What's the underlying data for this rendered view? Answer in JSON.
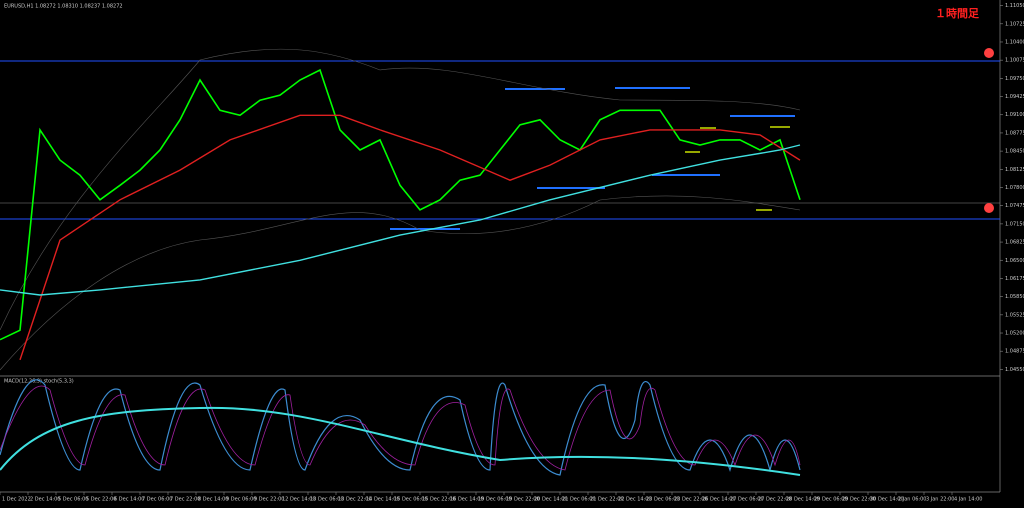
{
  "chart_data": {
    "type": "line",
    "title": "EURUSD,H1 1.08272 1.08310 1.08237 1.08272",
    "annotation": "１時間足",
    "indicator_label": "MACD(12,26,9) stoch(5,3,3)",
    "ylim": [
      1.0445,
      1.1115
    ],
    "yticks": [
      {
        "value": 1.1105,
        "label": "1.11050"
      },
      {
        "value": 1.10725,
        "label": "1.10725"
      },
      {
        "value": 1.104,
        "label": "1.10400"
      },
      {
        "value": 1.10075,
        "label": "1.10075"
      },
      {
        "value": 1.0975,
        "label": "1.09750"
      },
      {
        "value": 1.09425,
        "label": "1.09425"
      },
      {
        "value": 1.091,
        "label": "1.09100"
      },
      {
        "value": 1.08775,
        "label": "1.08775"
      },
      {
        "value": 1.0845,
        "label": "1.08450"
      },
      {
        "value": 1.08125,
        "label": "1.08125"
      },
      {
        "value": 1.078,
        "label": "1.07800"
      },
      {
        "value": 1.07475,
        "label": "1.07475"
      },
      {
        "value": 1.0715,
        "label": "1.07150"
      },
      {
        "value": 1.06825,
        "label": "1.06825"
      },
      {
        "value": 1.065,
        "label": "1.06500"
      },
      {
        "value": 1.06175,
        "label": "1.06175"
      },
      {
        "value": 1.0585,
        "label": "1.05850"
      },
      {
        "value": 1.05525,
        "label": "1.05525"
      },
      {
        "value": 1.052,
        "label": "1.05200"
      },
      {
        "value": 1.04875,
        "label": "1.04875"
      },
      {
        "value": 1.0455,
        "label": "1.04550"
      }
    ],
    "xlim": [
      0,
      48
    ],
    "xticks": [
      {
        "value": 0,
        "label": "1 Dec 2022"
      },
      {
        "value": 1.4,
        "label": "2 Dec 14:00"
      },
      {
        "value": 2.8,
        "label": "5 Dec 06:00"
      },
      {
        "value": 4.2,
        "label": "5 Dec 22:00"
      },
      {
        "value": 5.6,
        "label": "6 Dec 14:00"
      },
      {
        "value": 7,
        "label": "7 Dec 06:00"
      },
      {
        "value": 8.4,
        "label": "7 Dec 22:00"
      },
      {
        "value": 9.8,
        "label": "8 Dec 14:00"
      },
      {
        "value": 11.2,
        "label": "9 Dec 06:00"
      },
      {
        "value": 12.6,
        "label": "9 Dec 22:00"
      },
      {
        "value": 14,
        "label": "12 Dec 14:00"
      },
      {
        "value": 15.4,
        "label": "13 Dec 06:00"
      },
      {
        "value": 16.8,
        "label": "13 Dec 22:00"
      },
      {
        "value": 18.2,
        "label": "14 Dec 14:00"
      },
      {
        "value": 19.6,
        "label": "15 Dec 06:00"
      },
      {
        "value": 21,
        "label": "15 Dec 22:00"
      },
      {
        "value": 22.4,
        "label": "16 Dec 14:00"
      },
      {
        "value": 23.8,
        "label": "19 Dec 06:00"
      },
      {
        "value": 25.2,
        "label": "19 Dec 22:00"
      },
      {
        "value": 26.6,
        "label": "20 Dec 14:00"
      },
      {
        "value": 28,
        "label": "21 Dec 06:00"
      },
      {
        "value": 29.4,
        "label": "21 Dec 22:00"
      },
      {
        "value": 30.8,
        "label": "22 Dec 14:00"
      },
      {
        "value": 32.2,
        "label": "23 Dec 06:00"
      },
      {
        "value": 33.6,
        "label": "23 Dec 22:00"
      },
      {
        "value": 35,
        "label": "26 Dec 14:00"
      },
      {
        "value": 36.4,
        "label": "27 Dec 06:00"
      },
      {
        "value": 37.8,
        "label": "27 Dec 22:00"
      },
      {
        "value": 39.2,
        "label": "28 Dec 14:00"
      },
      {
        "value": 40.6,
        "label": "29 Dec 06:00"
      },
      {
        "value": 42,
        "label": "29 Dec 22:00"
      },
      {
        "value": 43.4,
        "label": "30 Dec 14:00"
      },
      {
        "value": 44.8,
        "label": "2 Jan 06:00"
      },
      {
        "value": 46.2,
        "label": "3 Jan 22:00"
      },
      {
        "value": 47.6,
        "label": "4 Jan 14:00"
      }
    ],
    "series": [
      {
        "name": "close",
        "color": "#00ff00",
        "x": [
          0,
          1,
          2,
          3,
          4,
          5,
          6,
          7,
          8,
          9,
          10,
          11,
          12,
          13,
          14,
          15,
          16,
          17,
          18,
          19,
          20,
          21,
          22,
          23,
          24,
          25,
          26,
          27,
          28,
          29,
          30,
          31,
          32,
          33,
          34,
          35,
          36,
          37,
          38,
          39,
          40
        ],
        "values": [
          1.0508,
          1.0525,
          1.0883,
          1.0829,
          1.0802,
          1.0758,
          1.0784,
          1.0811,
          1.0847,
          1.0901,
          1.0972,
          1.0918,
          1.0909,
          1.0936,
          1.0945,
          1.0972,
          1.099,
          1.0883,
          1.0847,
          1.0865,
          1.0784,
          1.074,
          1.0758,
          1.0793,
          1.0802,
          1.0847,
          1.0892,
          1.0901,
          1.0865,
          1.0847,
          1.0901,
          1.0918,
          1.0918,
          1.0918,
          1.0865,
          1.0856,
          1.0865,
          1.0865,
          1.0847,
          1.0865,
          1.0758
        ]
      },
      {
        "name": "ma-red",
        "color": "#e02020",
        "x": [
          1,
          3,
          6,
          9,
          11.5,
          15,
          17,
          19,
          22,
          25.5,
          27.5,
          30,
          32.5,
          36,
          38,
          40
        ],
        "values": [
          1.0472,
          1.0686,
          1.0758,
          1.0811,
          1.0865,
          1.0909,
          1.0909,
          1.0883,
          1.0847,
          1.0793,
          1.082,
          1.0865,
          1.0883,
          1.0883,
          1.0874,
          1.0829
        ]
      },
      {
        "name": "ma-cyan",
        "color": "#40e0e0",
        "x": [
          0,
          2,
          5,
          10,
          15,
          20,
          24,
          27.5,
          32.5,
          36,
          39,
          40
        ],
        "values": [
          1.0597,
          1.0588,
          1.0597,
          1.0615,
          1.065,
          1.0695,
          1.0722,
          1.0758,
          1.0802,
          1.0829,
          1.0847,
          1.0856
        ]
      }
    ]
  }
}
